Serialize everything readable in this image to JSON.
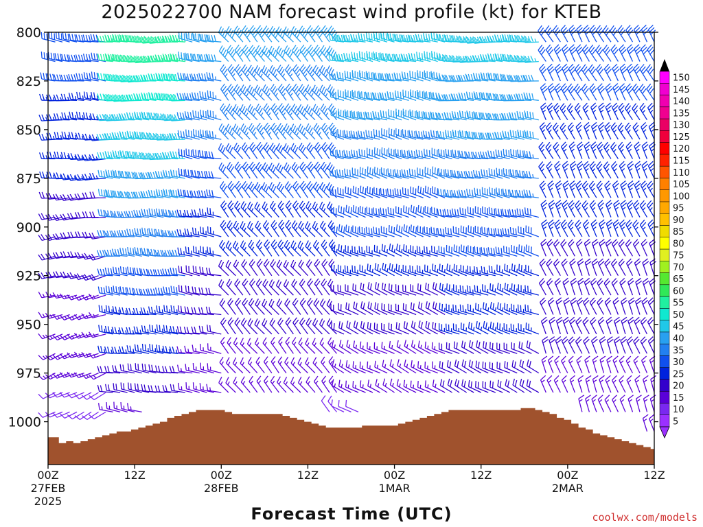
{
  "title": "2025022700 NAM forecast wind profile (kt) for KTEB",
  "credit": "coolwx.com/models",
  "chart_data": {
    "type": "wind-barb-profile",
    "title": "2025022700 NAM forecast wind profile (kt) for KTEB",
    "xlabel": "Forecast Time (UTC)",
    "ylabel": "",
    "y_axis": {
      "reversed": true,
      "range": [
        800,
        1022
      ],
      "ticks": [
        800,
        825,
        850,
        875,
        900,
        925,
        950,
        975,
        1000
      ]
    },
    "x_axis": {
      "range_hours": [
        0,
        84
      ],
      "ticks": [
        {
          "hour": 0,
          "lines": [
            "00Z",
            "27FEB",
            "2025"
          ]
        },
        {
          "hour": 12,
          "lines": [
            "12Z"
          ]
        },
        {
          "hour": 24,
          "lines": [
            "00Z",
            "28FEB"
          ]
        },
        {
          "hour": 36,
          "lines": [
            "12Z"
          ]
        },
        {
          "hour": 48,
          "lines": [
            "00Z",
            "1MAR"
          ]
        },
        {
          "hour": 60,
          "lines": [
            "12Z"
          ]
        },
        {
          "hour": 72,
          "lines": [
            "00Z",
            "2MAR"
          ]
        },
        {
          "hour": 84,
          "lines": [
            "12Z"
          ]
        }
      ]
    },
    "colorbar": {
      "levels": [
        5,
        10,
        15,
        20,
        25,
        30,
        35,
        40,
        45,
        50,
        55,
        60,
        65,
        70,
        75,
        80,
        85,
        90,
        95,
        100,
        105,
        110,
        115,
        120,
        125,
        130,
        135,
        140,
        145,
        150
      ],
      "colors": [
        "#9b30ff",
        "#7a28f0",
        "#5a00d8",
        "#3300cc",
        "#0022dd",
        "#1050ee",
        "#2280f0",
        "#28a0f0",
        "#20c8e8",
        "#10e8d0",
        "#20f0a0",
        "#30e858",
        "#55e830",
        "#a0f020",
        "#e0f020",
        "#ffff00",
        "#f0dc00",
        "#ffc000",
        "#ffa800",
        "#ff9800",
        "#ff8000",
        "#ff5500",
        "#ff2200",
        "#ff0000",
        "#f0003c",
        "#ea0064",
        "#f00090",
        "#f000b0",
        "#f000d0",
        "#ff00ff"
      ]
    },
    "surface_pressure": {
      "hours": [
        0,
        1,
        2,
        3,
        4,
        5,
        6,
        7,
        8,
        9,
        10,
        11,
        12,
        13,
        14,
        15,
        16,
        17,
        18,
        19,
        20,
        21,
        22,
        23,
        24,
        25,
        26,
        27,
        28,
        29,
        30,
        31,
        32,
        33,
        34,
        35,
        36,
        37,
        38,
        39,
        40,
        41,
        42,
        43,
        44,
        45,
        46,
        47,
        48,
        49,
        50,
        51,
        52,
        53,
        54,
        55,
        56,
        57,
        58,
        59,
        60,
        61,
        62,
        63,
        64,
        65,
        66,
        67,
        68,
        69,
        70,
        71,
        72,
        73,
        74,
        75,
        76,
        77,
        78,
        79,
        80,
        81,
        82,
        83,
        84
      ],
      "values": [
        1008,
        1008,
        1011,
        1010,
        1011,
        1010,
        1009,
        1008,
        1007,
        1006,
        1005,
        1005,
        1004,
        1003,
        1002,
        1001,
        1000,
        998,
        997,
        996,
        995,
        994,
        994,
        994,
        994,
        995,
        996,
        996,
        996,
        996,
        996,
        996,
        996,
        997,
        998,
        999,
        1000,
        1001,
        1002,
        1003,
        1003,
        1003,
        1003,
        1003,
        1002,
        1002,
        1002,
        1002,
        1002,
        1001,
        1000,
        999,
        998,
        997,
        996,
        995,
        994,
        994,
        994,
        994,
        994,
        994,
        994,
        994,
        994,
        994,
        993,
        993,
        994,
        995,
        996,
        998,
        999,
        1001,
        1003,
        1004,
        1006,
        1007,
        1008,
        1009,
        1010,
        1011,
        1012,
        1013,
        1014
      ]
    },
    "barbs": {
      "hours_start": 1,
      "hours_end": 84,
      "hours_step": 1,
      "levels_hPa": [
        805,
        815,
        825,
        835,
        845,
        855,
        865,
        875,
        885,
        895,
        905,
        915,
        925,
        935,
        945,
        955,
        965,
        975,
        985,
        995,
        1005
      ],
      "regimes": [
        {
          "hours": [
            0,
            8
          ],
          "dir_top": 280,
          "dir_bottom": 240,
          "spd_top": 30,
          "spd_bottom": 10
        },
        {
          "hours": [
            9,
            19
          ],
          "dir_top": 270,
          "dir_bottom": 280,
          "spd_top": 55,
          "spd_bottom": 15
        },
        {
          "hours": [
            20,
            24
          ],
          "dir_top": 280,
          "dir_bottom": 280,
          "spd_top": 40,
          "spd_bottom": 10
        },
        {
          "hours": [
            25,
            40
          ],
          "dir_top": 320,
          "dir_bottom": 320,
          "spd_top": 40,
          "spd_bottom": 10
        },
        {
          "hours": [
            41,
            55
          ],
          "dir_top": 280,
          "dir_bottom": 300,
          "spd_top": 45,
          "spd_bottom": 10
        },
        {
          "hours": [
            56,
            68
          ],
          "dir_top": 270,
          "dir_bottom": 300,
          "spd_top": 45,
          "spd_bottom": 15
        },
        {
          "hours": [
            69,
            84
          ],
          "dir_top": 330,
          "dir_bottom": 340,
          "spd_top": 30,
          "spd_bottom": 15
        }
      ]
    }
  }
}
